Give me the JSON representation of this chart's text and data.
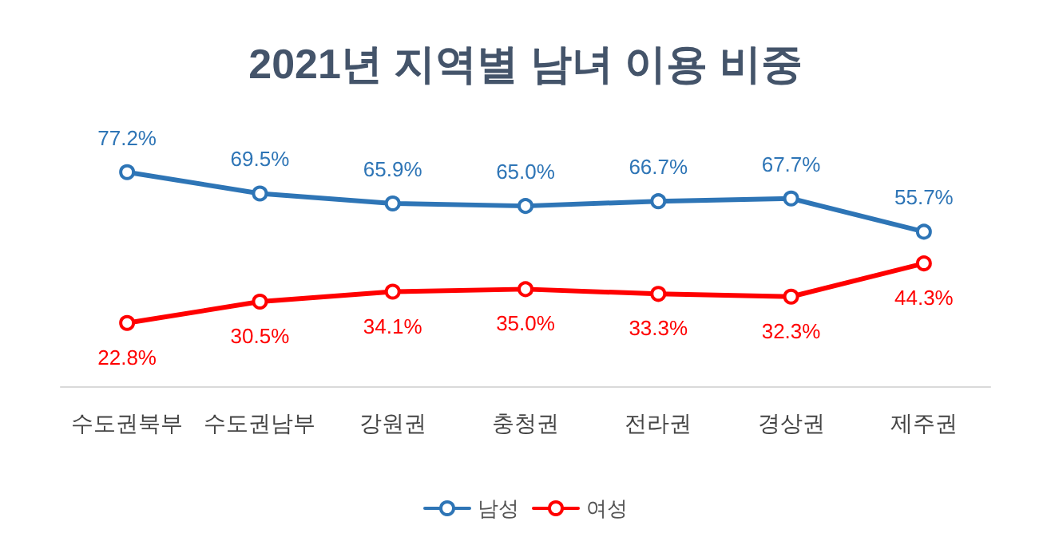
{
  "chart_data": {
    "type": "line",
    "title": "2021년 지역별 남녀 이용 비중",
    "categories": [
      "수도권북부",
      "수도권남부",
      "강원권",
      "충청권",
      "전라권",
      "경상권",
      "제주권"
    ],
    "series": [
      {
        "name": "남성",
        "color": "#2e75b6",
        "values": [
          77.2,
          69.5,
          65.9,
          65.0,
          66.7,
          67.7,
          55.7
        ],
        "value_labels": [
          "77.2%",
          "69.5%",
          "65.9%",
          "65.0%",
          "66.7%",
          "67.7%",
          "55.7%"
        ]
      },
      {
        "name": "여성",
        "color": "#ff0000",
        "values": [
          22.8,
          30.5,
          34.1,
          35.0,
          33.3,
          32.3,
          44.3
        ],
        "value_labels": [
          "22.8%",
          "30.5%",
          "34.1%",
          "35.0%",
          "33.3%",
          "32.3%",
          "44.3%"
        ]
      }
    ],
    "marker": "circle",
    "line_style": "solid",
    "legend": "bottom",
    "grid": false
  }
}
